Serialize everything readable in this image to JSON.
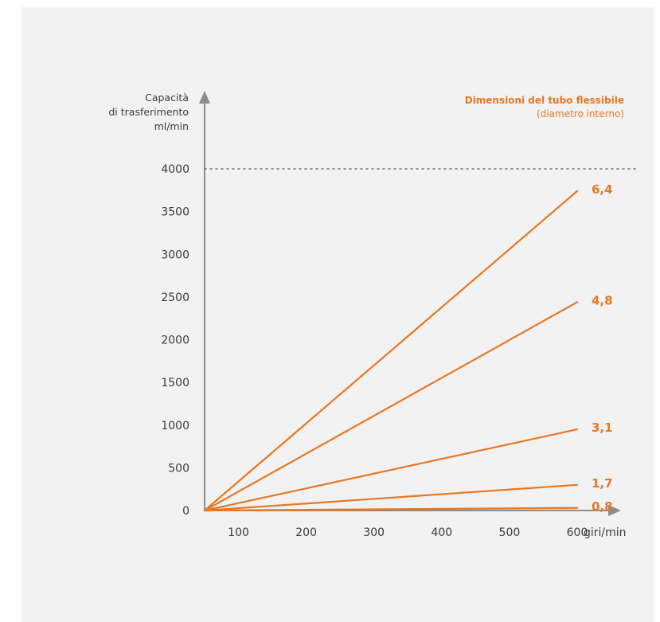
{
  "chart_data": {
    "type": "line",
    "ylabel": [
      "Capacità",
      "di trasferimento",
      "ml/min"
    ],
    "xlabel": "giri/min",
    "legend": {
      "title": "Dimensioni del tubo flessibile",
      "subtitle": "(diametro interno)"
    },
    "x_ticks": [
      100,
      200,
      300,
      400,
      500,
      600
    ],
    "y_ticks": [
      0,
      500,
      1000,
      1500,
      2000,
      2500,
      3000,
      3500,
      4000
    ],
    "xlim": [
      50,
      600
    ],
    "ylim": [
      0,
      4000
    ],
    "reference_line": {
      "y": 4000,
      "style": "dotted"
    },
    "series": [
      {
        "name": "6,4",
        "x": [
          50,
          600
        ],
        "y": [
          0,
          3740
        ]
      },
      {
        "name": "4,8",
        "x": [
          50,
          600
        ],
        "y": [
          0,
          2440
        ]
      },
      {
        "name": "3,1",
        "x": [
          50,
          600
        ],
        "y": [
          0,
          950
        ]
      },
      {
        "name": "1,7",
        "x": [
          50,
          600
        ],
        "y": [
          0,
          300
        ]
      },
      {
        "name": "0,8",
        "x": [
          50,
          600
        ],
        "y": [
          0,
          30
        ]
      }
    ],
    "grid": false
  },
  "colors": {
    "line": "#e87722",
    "axis": "#8c8c8c",
    "background": "#f2f2f2"
  }
}
